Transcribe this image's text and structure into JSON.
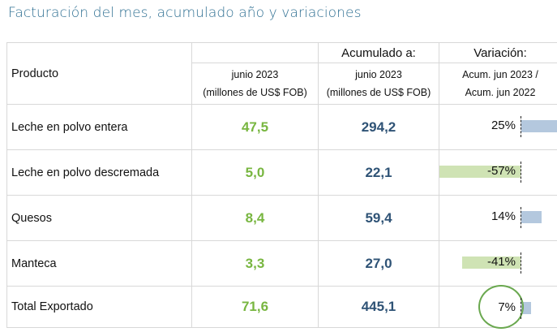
{
  "title": "Facturación del mes, acumulado año y variaciones",
  "header": {
    "product": "Producto",
    "acumulado": "Acumulado a:",
    "variacion": "Variación:",
    "month_line1": "junio 2023",
    "month_line2": "(millones de US$ FOB)",
    "acum_line1": "junio 2023",
    "acum_line2": "(millones de US$ FOB)",
    "var_line1": "Acum. jun 2023 /",
    "var_line2": "Acum. jun 2022"
  },
  "rows": [
    {
      "product": "Leche en polvo entera",
      "month": "47,5",
      "acum": "294,2",
      "variation": "25%",
      "variation_value": 25
    },
    {
      "product": "Leche en polvo descremada",
      "month": "5,0",
      "acum": "22,1",
      "variation": "-57%",
      "variation_value": -57
    },
    {
      "product": "Quesos",
      "month": "8,4",
      "acum": "59,4",
      "variation": "14%",
      "variation_value": 14
    },
    {
      "product": "Manteca",
      "month": "3,3",
      "acum": "27,0",
      "variation": "-41%",
      "variation_value": -41
    },
    {
      "product": "Total Exportado",
      "month": "71,6",
      "acum": "445,1",
      "variation": "7%",
      "variation_value": 7,
      "highlighted": true
    }
  ],
  "colors": {
    "title": "#2e6f92",
    "month_values": "#78b640",
    "acum_values": "#2f5376",
    "positive_bar": "#b4c8de",
    "negative_bar": "#cfe3b4",
    "highlight_circle": "#6aa84f"
  }
}
